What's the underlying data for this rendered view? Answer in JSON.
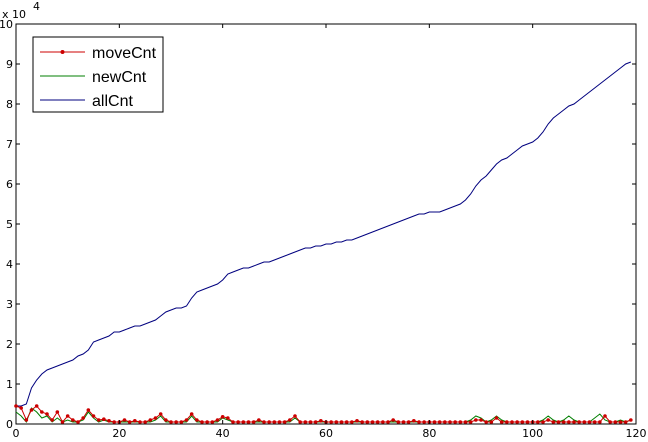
{
  "chart_data": {
    "type": "line",
    "title": "",
    "xlabel": "",
    "ylabel": "",
    "xlim": [
      0,
      120
    ],
    "ylim": [
      0,
      10
    ],
    "y_scale_label": "x 10",
    "y_scale_exponent": "4",
    "x_ticks": [
      "0",
      "20",
      "40",
      "60",
      "80",
      "100",
      "120"
    ],
    "y_ticks": [
      "0",
      "1",
      "2",
      "3",
      "4",
      "5",
      "6",
      "7",
      "8",
      "9",
      "10"
    ],
    "grid": false,
    "legend_position": "top-left",
    "series": [
      {
        "name": "moveCnt",
        "color": "#cc0000",
        "marker": "dot",
        "x": [
          0,
          1,
          2,
          3,
          4,
          5,
          6,
          7,
          8,
          9,
          10,
          11,
          12,
          13,
          14,
          15,
          16,
          17,
          18,
          19,
          20,
          21,
          22,
          23,
          24,
          25,
          26,
          27,
          28,
          29,
          30,
          31,
          32,
          33,
          34,
          35,
          36,
          37,
          38,
          39,
          40,
          41,
          42,
          43,
          44,
          45,
          46,
          47,
          48,
          49,
          50,
          51,
          52,
          53,
          54,
          55,
          56,
          57,
          58,
          59,
          60,
          61,
          62,
          63,
          64,
          65,
          66,
          67,
          68,
          69,
          70,
          71,
          72,
          73,
          74,
          75,
          76,
          77,
          78,
          79,
          80,
          81,
          82,
          83,
          84,
          85,
          86,
          87,
          88,
          89,
          90,
          91,
          92,
          93,
          94,
          95,
          96,
          97,
          98,
          99,
          100,
          101,
          102,
          103,
          104,
          105,
          106,
          107,
          108,
          109,
          110,
          111,
          112,
          113,
          114,
          115,
          116,
          117,
          118,
          119
        ],
        "values": [
          0.45,
          0.4,
          0.1,
          0.35,
          0.45,
          0.3,
          0.25,
          0.1,
          0.3,
          0.05,
          0.2,
          0.1,
          0.05,
          0.15,
          0.35,
          0.2,
          0.1,
          0.12,
          0.08,
          0.05,
          0.05,
          0.1,
          0.05,
          0.08,
          0.05,
          0.05,
          0.1,
          0.15,
          0.25,
          0.1,
          0.05,
          0.05,
          0.05,
          0.1,
          0.25,
          0.1,
          0.05,
          0.05,
          0.05,
          0.1,
          0.18,
          0.15,
          0.05,
          0.05,
          0.05,
          0.05,
          0.05,
          0.1,
          0.05,
          0.05,
          0.05,
          0.05,
          0.05,
          0.1,
          0.2,
          0.05,
          0.05,
          0.05,
          0.05,
          0.08,
          0.05,
          0.05,
          0.05,
          0.05,
          0.05,
          0.05,
          0.08,
          0.05,
          0.05,
          0.05,
          0.05,
          0.05,
          0.05,
          0.1,
          0.05,
          0.05,
          0.05,
          0.08,
          0.05,
          0.05,
          0.05,
          0.05,
          0.05,
          0.05,
          0.05,
          0.05,
          0.05,
          0.05,
          0.05,
          0.1,
          0.1,
          0.05,
          0.05,
          0.15,
          0.05,
          0.05,
          0.05,
          0.05,
          0.05,
          0.05,
          0.05,
          0.05,
          0.05,
          0.1,
          0.05,
          0.05,
          0.05,
          0.05,
          0.05,
          0.05,
          0.05,
          0.05,
          0.05,
          0.05,
          0.2,
          0.05,
          0.05,
          0.05,
          0.05,
          0.1
        ]
      },
      {
        "name": "newCnt",
        "color": "#007f00",
        "marker": "none",
        "x": [
          0,
          1,
          2,
          3,
          4,
          5,
          6,
          7,
          8,
          9,
          10,
          11,
          12,
          13,
          14,
          15,
          16,
          17,
          18,
          19,
          20,
          21,
          22,
          23,
          24,
          25,
          26,
          27,
          28,
          29,
          30,
          31,
          32,
          33,
          34,
          35,
          36,
          37,
          38,
          39,
          40,
          41,
          42,
          43,
          44,
          45,
          46,
          47,
          48,
          49,
          50,
          51,
          52,
          53,
          54,
          55,
          56,
          57,
          58,
          59,
          60,
          61,
          62,
          63,
          64,
          65,
          66,
          67,
          68,
          69,
          70,
          71,
          72,
          73,
          74,
          75,
          76,
          77,
          78,
          79,
          80,
          81,
          82,
          83,
          84,
          85,
          86,
          87,
          88,
          89,
          90,
          91,
          92,
          93,
          94,
          95,
          96,
          97,
          98,
          99,
          100,
          101,
          102,
          103,
          104,
          105,
          106,
          107,
          108,
          109,
          110,
          111,
          112,
          113,
          114,
          115,
          116,
          117,
          118,
          119
        ],
        "values": [
          0.3,
          0.2,
          0.05,
          0.4,
          0.3,
          0.15,
          0.2,
          0.05,
          0.15,
          0.05,
          0.1,
          0.05,
          0.05,
          0.1,
          0.3,
          0.15,
          0.05,
          0.1,
          0.05,
          0.05,
          0.05,
          0.05,
          0.05,
          0.05,
          0.05,
          0.05,
          0.05,
          0.1,
          0.2,
          0.05,
          0.05,
          0.05,
          0.05,
          0.05,
          0.2,
          0.05,
          0.05,
          0.05,
          0.05,
          0.05,
          0.15,
          0.1,
          0.05,
          0.05,
          0.05,
          0.05,
          0.05,
          0.05,
          0.05,
          0.05,
          0.05,
          0.05,
          0.05,
          0.05,
          0.15,
          0.05,
          0.05,
          0.05,
          0.05,
          0.05,
          0.05,
          0.05,
          0.05,
          0.05,
          0.05,
          0.05,
          0.05,
          0.05,
          0.05,
          0.05,
          0.05,
          0.05,
          0.05,
          0.05,
          0.05,
          0.05,
          0.05,
          0.05,
          0.05,
          0.05,
          0.05,
          0.05,
          0.05,
          0.05,
          0.05,
          0.05,
          0.05,
          0.05,
          0.1,
          0.2,
          0.15,
          0.05,
          0.1,
          0.2,
          0.1,
          0.05,
          0.05,
          0.05,
          0.05,
          0.05,
          0.05,
          0.05,
          0.1,
          0.2,
          0.1,
          0.05,
          0.1,
          0.2,
          0.1,
          0.05,
          0.05,
          0.05,
          0.15,
          0.25,
          0.1,
          0.05,
          0.05,
          0.1,
          0.05,
          0.1
        ]
      },
      {
        "name": "allCnt",
        "color": "#00007f",
        "marker": "none",
        "x": [
          0,
          1,
          2,
          3,
          4,
          5,
          6,
          7,
          8,
          9,
          10,
          11,
          12,
          13,
          14,
          15,
          16,
          17,
          18,
          19,
          20,
          21,
          22,
          23,
          24,
          25,
          26,
          27,
          28,
          29,
          30,
          31,
          32,
          33,
          34,
          35,
          36,
          37,
          38,
          39,
          40,
          41,
          42,
          43,
          44,
          45,
          46,
          47,
          48,
          49,
          50,
          51,
          52,
          53,
          54,
          55,
          56,
          57,
          58,
          59,
          60,
          61,
          62,
          63,
          64,
          65,
          66,
          67,
          68,
          69,
          70,
          71,
          72,
          73,
          74,
          75,
          76,
          77,
          78,
          79,
          80,
          81,
          82,
          83,
          84,
          85,
          86,
          87,
          88,
          89,
          90,
          91,
          92,
          93,
          94,
          95,
          96,
          97,
          98,
          99,
          100,
          101,
          102,
          103,
          104,
          105,
          106,
          107,
          108,
          109,
          110,
          111,
          112,
          113,
          114,
          115,
          116,
          117,
          118,
          119
        ],
        "values": [
          0.45,
          0.45,
          0.5,
          0.9,
          1.1,
          1.25,
          1.35,
          1.4,
          1.45,
          1.5,
          1.55,
          1.6,
          1.7,
          1.75,
          1.85,
          2.05,
          2.1,
          2.15,
          2.2,
          2.3,
          2.3,
          2.35,
          2.4,
          2.45,
          2.45,
          2.5,
          2.55,
          2.6,
          2.7,
          2.8,
          2.85,
          2.9,
          2.9,
          2.95,
          3.15,
          3.3,
          3.35,
          3.4,
          3.45,
          3.5,
          3.6,
          3.75,
          3.8,
          3.85,
          3.9,
          3.9,
          3.95,
          4.0,
          4.05,
          4.05,
          4.1,
          4.15,
          4.2,
          4.25,
          4.3,
          4.35,
          4.4,
          4.4,
          4.45,
          4.45,
          4.5,
          4.5,
          4.55,
          4.55,
          4.6,
          4.6,
          4.65,
          4.7,
          4.75,
          4.8,
          4.85,
          4.9,
          4.95,
          5.0,
          5.05,
          5.1,
          5.15,
          5.2,
          5.25,
          5.25,
          5.3,
          5.3,
          5.3,
          5.35,
          5.4,
          5.45,
          5.5,
          5.6,
          5.75,
          5.95,
          6.1,
          6.2,
          6.35,
          6.5,
          6.6,
          6.65,
          6.75,
          6.85,
          6.95,
          7.0,
          7.05,
          7.15,
          7.3,
          7.5,
          7.65,
          7.75,
          7.85,
          7.95,
          8.0,
          8.1,
          8.2,
          8.3,
          8.4,
          8.5,
          8.6,
          8.7,
          8.8,
          8.9,
          9.0,
          9.05
        ]
      }
    ]
  }
}
